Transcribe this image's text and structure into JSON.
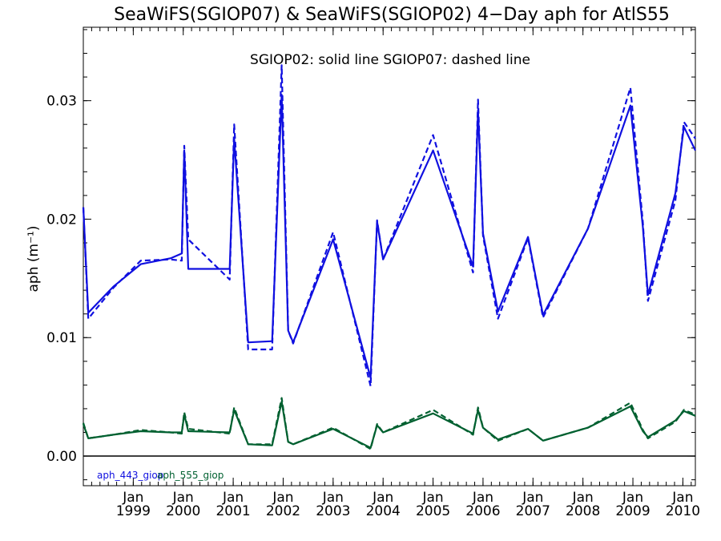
{
  "chart_data": {
    "type": "line",
    "title": "SeaWiFS(SGIOP07) & SeaWiFS(SGIOP02) 4−Day aph for AtlS55",
    "note": "SGIOP02: solid line   SGIOP07: dashed line",
    "ylabel": "aph (m⁻¹)",
    "xlabel": "",
    "xlim": [
      1998.0,
      2010.25
    ],
    "ylim": [
      -0.0025,
      0.0362
    ],
    "yticks": [
      0.0,
      0.01,
      0.02,
      0.03
    ],
    "ytick_labels": [
      "0.00",
      "0.01",
      "0.02",
      "0.03"
    ],
    "xticks": [
      1999.0,
      2000.0,
      2001.0,
      2002.0,
      2003.0,
      2004.0,
      2005.0,
      2006.0,
      2007.0,
      2008.0,
      2009.0,
      2010.0
    ],
    "xtick_month_label": "Jan",
    "xtick_year_labels": [
      "1999",
      "2000",
      "2001",
      "2002",
      "2003",
      "2004",
      "2005",
      "2006",
      "2007",
      "2008",
      "2009",
      "2010"
    ],
    "zero_line": true,
    "grid": false,
    "series": [
      {
        "name": "aph_443_giop",
        "color": "#1010e0",
        "dash": "solid",
        "x": [
          1998.0,
          1998.1,
          1998.6,
          1999.15,
          1999.75,
          1999.97,
          2000.02,
          2000.1,
          2000.93,
          2001.02,
          2001.3,
          2001.78,
          2001.97,
          2002.1,
          2002.2,
          2003.0,
          2003.75,
          2003.88,
          2004.0,
          2005.0,
          2005.8,
          2005.9,
          2006.0,
          2006.3,
          2006.9,
          2007.2,
          2008.1,
          2008.95,
          2009.2,
          2009.3,
          2009.85,
          2010.02,
          2010.25
        ],
        "y": [
          0.021,
          0.0121,
          0.0143,
          0.0162,
          0.0167,
          0.0171,
          0.0258,
          0.0158,
          0.0158,
          0.0268,
          0.0096,
          0.0097,
          0.0305,
          0.0106,
          0.0096,
          0.0183,
          0.0066,
          0.0198,
          0.0166,
          0.0258,
          0.016,
          0.0292,
          0.0188,
          0.0122,
          0.0185,
          0.0119,
          0.0192,
          0.0296,
          0.0193,
          0.0136,
          0.0222,
          0.0278,
          0.0258
        ]
      },
      {
        "name": "aph_443_giop",
        "color": "#1010e0",
        "dash": "dashed",
        "x": [
          1998.0,
          1998.1,
          1998.6,
          1999.15,
          1999.75,
          1999.97,
          2000.02,
          2000.1,
          2000.93,
          2001.02,
          2001.3,
          2001.78,
          2001.97,
          2002.1,
          2002.2,
          2003.0,
          2003.75,
          2003.88,
          2004.0,
          2005.0,
          2005.8,
          2005.9,
          2006.0,
          2006.3,
          2006.9,
          2007.2,
          2008.1,
          2008.95,
          2009.2,
          2009.3,
          2009.85,
          2010.02,
          2010.25
        ],
        "y": [
          0.021,
          0.0116,
          0.0142,
          0.0165,
          0.0166,
          0.0165,
          0.0262,
          0.0183,
          0.0149,
          0.028,
          0.009,
          0.009,
          0.033,
          0.0106,
          0.0095,
          0.0189,
          0.0059,
          0.0199,
          0.0166,
          0.0271,
          0.0155,
          0.0301,
          0.0186,
          0.0116,
          0.0184,
          0.0117,
          0.0192,
          0.0311,
          0.0197,
          0.0131,
          0.0216,
          0.0282,
          0.0268
        ]
      },
      {
        "name": "aph_555_giop",
        "color": "#006030",
        "dash": "solid",
        "x": [
          1998.0,
          1998.1,
          1998.6,
          1999.15,
          1999.75,
          1999.97,
          2000.02,
          2000.1,
          2000.93,
          2001.02,
          2001.3,
          2001.78,
          2001.97,
          2002.1,
          2002.2,
          2003.0,
          2003.75,
          2003.88,
          2004.0,
          2005.0,
          2005.8,
          2005.9,
          2006.0,
          2006.3,
          2006.9,
          2007.2,
          2008.1,
          2008.95,
          2009.2,
          2009.3,
          2009.85,
          2010.02,
          2010.25
        ],
        "y": [
          0.0027,
          0.0015,
          0.0018,
          0.0021,
          0.002,
          0.002,
          0.0035,
          0.0021,
          0.002,
          0.0039,
          0.001,
          0.0009,
          0.0046,
          0.0012,
          0.001,
          0.0023,
          0.0007,
          0.0026,
          0.002,
          0.0036,
          0.0019,
          0.0039,
          0.0024,
          0.0014,
          0.0023,
          0.0013,
          0.0024,
          0.0042,
          0.0021,
          0.0016,
          0.003,
          0.0038,
          0.0034
        ]
      },
      {
        "name": "aph_555_giop",
        "color": "#006030",
        "dash": "dashed",
        "x": [
          1998.0,
          1998.1,
          1998.6,
          1999.15,
          1999.75,
          1999.97,
          2000.02,
          2000.1,
          2000.93,
          2001.02,
          2001.3,
          2001.78,
          2001.97,
          2002.1,
          2002.2,
          2003.0,
          2003.75,
          2003.88,
          2004.0,
          2005.0,
          2005.8,
          2005.9,
          2006.0,
          2006.3,
          2006.9,
          2007.2,
          2008.1,
          2008.95,
          2009.2,
          2009.3,
          2009.85,
          2010.02,
          2010.25
        ],
        "y": [
          0.0028,
          0.0015,
          0.0018,
          0.0022,
          0.002,
          0.0019,
          0.0037,
          0.0023,
          0.0019,
          0.0041,
          0.001,
          0.001,
          0.0049,
          0.0012,
          0.001,
          0.0024,
          0.0006,
          0.0027,
          0.002,
          0.0039,
          0.0018,
          0.0041,
          0.0024,
          0.0013,
          0.0023,
          0.0013,
          0.0024,
          0.0045,
          0.0022,
          0.0015,
          0.0029,
          0.0039,
          0.0035
        ]
      }
    ],
    "legend": [
      {
        "label": "aph_443_giop",
        "color": "#1010e0"
      },
      {
        "label": "aph_555_giop",
        "color": "#006030"
      }
    ],
    "legend_position": "bottom-left"
  }
}
